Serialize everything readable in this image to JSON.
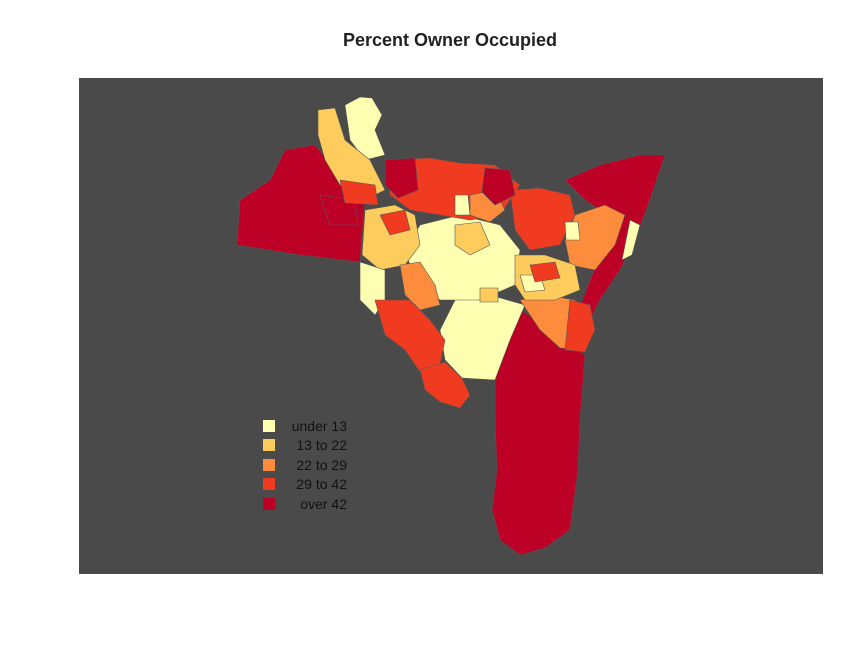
{
  "title": "Percent Owner Occupied",
  "colors": {
    "background": "#4a4a4a",
    "tract_border": "#555555"
  },
  "legend": [
    {
      "label": "under 13",
      "color": "#ffffb2"
    },
    {
      "label": "13 to 22",
      "color": "#fecc5c"
    },
    {
      "label": "22 to 29",
      "color": "#fd8d3c"
    },
    {
      "label": "29 to 42",
      "color": "#f03b20"
    },
    {
      "label": "over 42",
      "color": "#bd0026"
    }
  ]
}
